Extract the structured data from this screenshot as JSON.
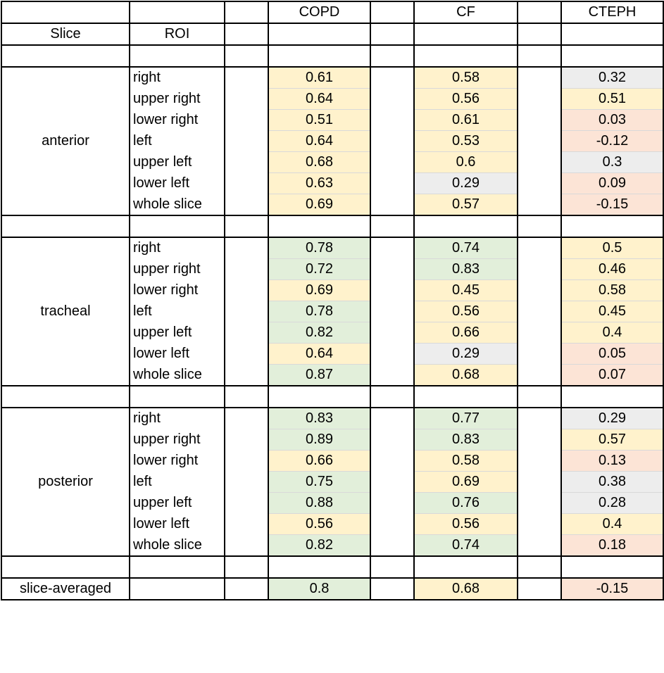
{
  "header": {
    "columns": [
      "COPD",
      "CF",
      "CTEPH"
    ],
    "slice_label": "Slice",
    "roi_label": "ROI"
  },
  "groups": [
    {
      "slice": "anterior",
      "rows": [
        {
          "roi": "right",
          "COPD": "0.61",
          "CF": "0.58",
          "CTEPH": "0.32",
          "colors": [
            "yellow",
            "yellow",
            "gray"
          ]
        },
        {
          "roi": "upper right",
          "COPD": "0.64",
          "CF": "0.56",
          "CTEPH": "0.51",
          "colors": [
            "yellow",
            "yellow",
            "yellow"
          ]
        },
        {
          "roi": "lower right",
          "COPD": "0.51",
          "CF": "0.61",
          "CTEPH": "0.03",
          "colors": [
            "yellow",
            "yellow",
            "red"
          ]
        },
        {
          "roi": "left",
          "COPD": "0.64",
          "CF": "0.53",
          "CTEPH": "-0.12",
          "colors": [
            "yellow",
            "yellow",
            "red"
          ]
        },
        {
          "roi": "upper left",
          "COPD": "0.68",
          "CF": "0.6",
          "CTEPH": "0.3",
          "colors": [
            "yellow",
            "yellow",
            "gray"
          ]
        },
        {
          "roi": "lower left",
          "COPD": "0.63",
          "CF": "0.29",
          "CTEPH": "0.09",
          "colors": [
            "yellow",
            "gray",
            "red"
          ]
        },
        {
          "roi": "whole slice",
          "COPD": "0.69",
          "CF": "0.57",
          "CTEPH": "-0.15",
          "colors": [
            "yellow",
            "yellow",
            "red"
          ]
        }
      ]
    },
    {
      "slice": "tracheal",
      "rows": [
        {
          "roi": "right",
          "COPD": "0.78",
          "CF": "0.74",
          "CTEPH": "0.5",
          "colors": [
            "green",
            "green",
            "yellow"
          ]
        },
        {
          "roi": "upper right",
          "COPD": "0.72",
          "CF": "0.83",
          "CTEPH": "0.46",
          "colors": [
            "green",
            "green",
            "yellow"
          ]
        },
        {
          "roi": "lower right",
          "COPD": "0.69",
          "CF": "0.45",
          "CTEPH": "0.58",
          "colors": [
            "yellow",
            "yellow",
            "yellow"
          ]
        },
        {
          "roi": "left",
          "COPD": "0.78",
          "CF": "0.56",
          "CTEPH": "0.45",
          "colors": [
            "green",
            "yellow",
            "yellow"
          ]
        },
        {
          "roi": "upper left",
          "COPD": "0.82",
          "CF": "0.66",
          "CTEPH": "0.4",
          "colors": [
            "green",
            "yellow",
            "yellow"
          ]
        },
        {
          "roi": "lower left",
          "COPD": "0.64",
          "CF": "0.29",
          "CTEPH": "0.05",
          "colors": [
            "yellow",
            "gray",
            "red"
          ]
        },
        {
          "roi": "whole slice",
          "COPD": "0.87",
          "CF": "0.68",
          "CTEPH": "0.07",
          "colors": [
            "green",
            "yellow",
            "red"
          ]
        }
      ]
    },
    {
      "slice": "posterior",
      "rows": [
        {
          "roi": "right",
          "COPD": "0.83",
          "CF": "0.77",
          "CTEPH": "0.29",
          "colors": [
            "green",
            "green",
            "gray"
          ]
        },
        {
          "roi": "upper right",
          "COPD": "0.89",
          "CF": "0.83",
          "CTEPH": "0.57",
          "colors": [
            "green",
            "green",
            "yellow"
          ]
        },
        {
          "roi": "lower right",
          "COPD": "0.66",
          "CF": "0.58",
          "CTEPH": "0.13",
          "colors": [
            "yellow",
            "yellow",
            "red"
          ]
        },
        {
          "roi": "left",
          "COPD": "0.75",
          "CF": "0.69",
          "CTEPH": "0.38",
          "colors": [
            "green",
            "yellow",
            "gray"
          ]
        },
        {
          "roi": "upper left",
          "COPD": "0.88",
          "CF": "0.76",
          "CTEPH": "0.28",
          "colors": [
            "green",
            "green",
            "gray"
          ]
        },
        {
          "roi": "lower left",
          "COPD": "0.56",
          "CF": "0.56",
          "CTEPH": "0.4",
          "colors": [
            "yellow",
            "yellow",
            "yellow"
          ]
        },
        {
          "roi": "whole slice",
          "COPD": "0.82",
          "CF": "0.74",
          "CTEPH": "0.18",
          "colors": [
            "green",
            "green",
            "red"
          ]
        }
      ]
    }
  ],
  "averaged": {
    "label": "slice-averaged",
    "COPD": "0.8",
    "CF": "0.68",
    "CTEPH": "-0.15",
    "colors": [
      "green",
      "yellow",
      "red"
    ]
  },
  "palette": {
    "green": "#e2efda",
    "yellow": "#fff2cc",
    "gray": "#ededed",
    "red": "#fce4d6"
  }
}
